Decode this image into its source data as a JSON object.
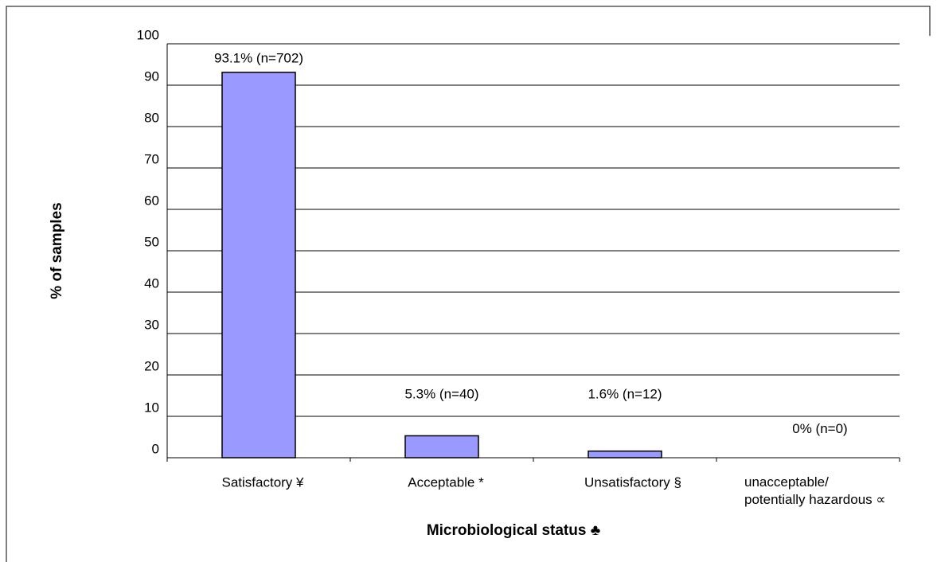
{
  "chart_data": {
    "type": "bar",
    "x_label": "Microbiological status ♣",
    "y_label": "% of samples",
    "categories": [
      "Satisfactory ¥",
      "Acceptable *",
      "Unsatisfactory §",
      "unacceptable/\npotentially hazardous ∝"
    ],
    "values": [
      93.1,
      5.3,
      1.6,
      0
    ],
    "value_labels": [
      "93.1% (n=702)",
      "5.3% (n=40)",
      "1.6% (n=12)",
      "0% (n=0)"
    ],
    "color": "#9999ff",
    "ylim": [
      0,
      100
    ],
    "yticks": [
      0,
      10,
      20,
      30,
      40,
      50,
      60,
      70,
      80,
      90,
      100
    ],
    "grid": true
  }
}
